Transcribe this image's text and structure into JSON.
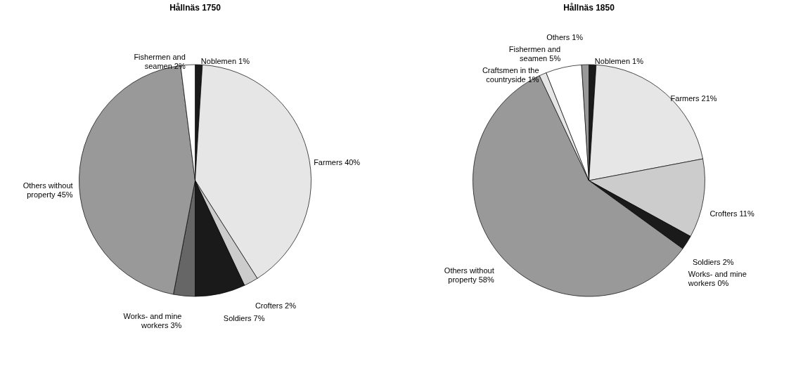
{
  "chart_data": [
    {
      "type": "pie",
      "title": "Hållnäs 1750",
      "value_labels": [
        "1%",
        "40%",
        "2%",
        "7%",
        "3%",
        "45%",
        "2%"
      ],
      "categories": [
        "Noblemen",
        "Farmers",
        "Crofters",
        "Soldiers",
        "Works- and mine workers",
        "Others without property",
        "Fishermen and seamen"
      ],
      "values": [
        1,
        40,
        2,
        7,
        3,
        45,
        2
      ],
      "colors": [
        "#1a1a1a",
        "#e6e6e6",
        "#cccccc",
        "#1a1a1a",
        "#666666",
        "#999999",
        "#ffffff"
      ]
    },
    {
      "type": "pie",
      "title": "Hållnäs 1850",
      "value_labels": [
        "1%",
        "21%",
        "11%",
        "2%",
        "0%",
        "58%",
        "1%",
        "5%",
        "1%"
      ],
      "categories": [
        "Noblemen",
        "Farmers",
        "Crofters",
        "Soldiers",
        "Works- and mine workers",
        "Others without property",
        "Craftsmen in the countryside",
        "Fishermen and seamen",
        "Others"
      ],
      "values": [
        1,
        21,
        11,
        2,
        0,
        58,
        1,
        5,
        1
      ],
      "colors": [
        "#1a1a1a",
        "#e6e6e6",
        "#cccccc",
        "#1a1a1a",
        "#666666",
        "#999999",
        "#e6e6e6",
        "#ffffff",
        "#999999"
      ]
    }
  ]
}
